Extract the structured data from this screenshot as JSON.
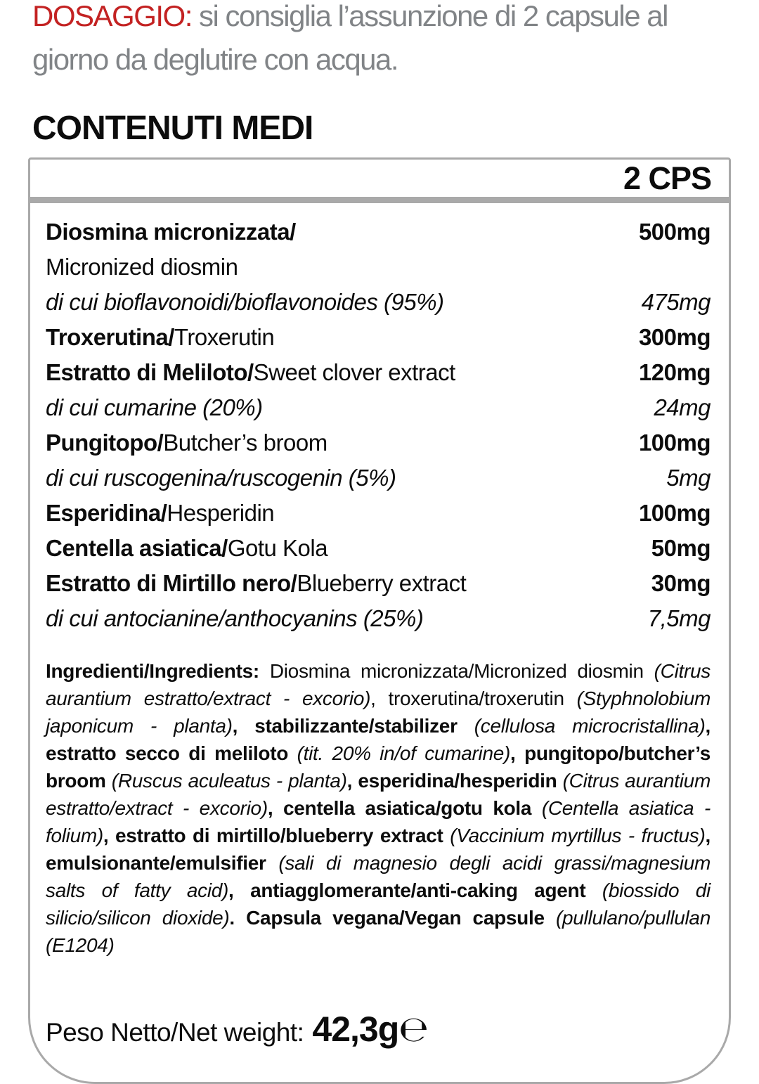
{
  "colors": {
    "accent_red": "#c32222",
    "gray_text": "#818487",
    "table_border": "#a9a9a9",
    "text_black": "#0c0c0c"
  },
  "dosage": {
    "label": "DOSAGGIO:",
    "text": "si consiglia l’assunzione di 2 capsule al giorno da deglutire con acqua."
  },
  "section_title": "CONTENUTI MEDI",
  "table": {
    "header_col": "2 CPS",
    "rows": [
      {
        "it": "Diosmina micronizzata/",
        "value": "500mg"
      },
      {
        "en": "Micronized diosmin"
      },
      {
        "text": "di cui bioflavonoidi/bioflavonoides (95%)",
        "value": "475mg"
      },
      {
        "it": "Troxerutina/",
        "en": "Troxerutin",
        "value": "300mg"
      },
      {
        "it": "Estratto di Meliloto/",
        "en": "Sweet clover extract",
        "value": "120mg"
      },
      {
        "text": "di cui cumarine (20%)",
        "value": "24mg"
      },
      {
        "it": "Pungitopo/",
        "en": "Butcher’s broom",
        "value": "100mg"
      },
      {
        "text": "di cui ruscogenina/ruscogenin (5%)",
        "value": "5mg"
      },
      {
        "it": "Esperidina/",
        "en": "Hesperidin",
        "value": "100mg"
      },
      {
        "it": "Centella asiatica/",
        "en": "Gotu Kola",
        "value": "50mg"
      },
      {
        "it": "Estratto di Mirtillo nero/",
        "en": "Blueberry extract",
        "value": "30mg"
      },
      {
        "text": "di cui antocianine/anthocyanins (25%)",
        "value": "7,5mg"
      }
    ]
  },
  "ingredients": {
    "segments": [
      {
        "s": "bold",
        "t": "Ingredienti/Ingredients:"
      },
      {
        "s": "regular",
        "t": " Diosmina micronizzata/Micronized diosmin "
      },
      {
        "s": "italic",
        "t": "(Citrus aurantium estratto/extract - excorio)"
      },
      {
        "s": "regular",
        "t": ", troxerutina/troxerutin "
      },
      {
        "s": "italic",
        "t": "(Styphnolobium japonicum - planta)"
      },
      {
        "s": "bold",
        "t": ", stabilizzante/stabilizer "
      },
      {
        "s": "italic",
        "t": "(cellulosa microcristallina)"
      },
      {
        "s": "bold",
        "t": ", estratto secco di meliloto "
      },
      {
        "s": "italic",
        "t": "(tit. 20% in/of cumarine)"
      },
      {
        "s": "bold",
        "t": ", pungitopo/butcher’s broom "
      },
      {
        "s": "italic",
        "t": "(Ruscus aculeatus - planta)"
      },
      {
        "s": "bold",
        "t": ", esperidina/hesperidin "
      },
      {
        "s": "italic",
        "t": "(Citrus aurantium estratto/extract - excorio)"
      },
      {
        "s": "bold",
        "t": ", centella asiatica/gotu kola "
      },
      {
        "s": "italic",
        "t": "(Centella asiatica - folium)"
      },
      {
        "s": "bold",
        "t": ", estratto di mirtillo/blueberry extract "
      },
      {
        "s": "italic",
        "t": "(Vaccinium myrtillus - fructus)"
      },
      {
        "s": "bold",
        "t": ", emulsionante/emulsifier "
      },
      {
        "s": "italic",
        "t": "(sali di magnesio degli acidi grassi/magnesium salts of fatty acid)"
      },
      {
        "s": "bold",
        "t": ", antiagglomerante/anti-caking agent "
      },
      {
        "s": "italic",
        "t": "(biossido di silicio/silicon dioxide)"
      },
      {
        "s": "bold",
        "t": ". Capsula vegana/Vegan capsule "
      },
      {
        "s": "italic",
        "t": "(pullulano/pullulan (E1204)"
      }
    ]
  },
  "net_weight": {
    "label": "Peso Netto/Net weight:",
    "value": "42,3g",
    "estimated_sign": "℮"
  }
}
